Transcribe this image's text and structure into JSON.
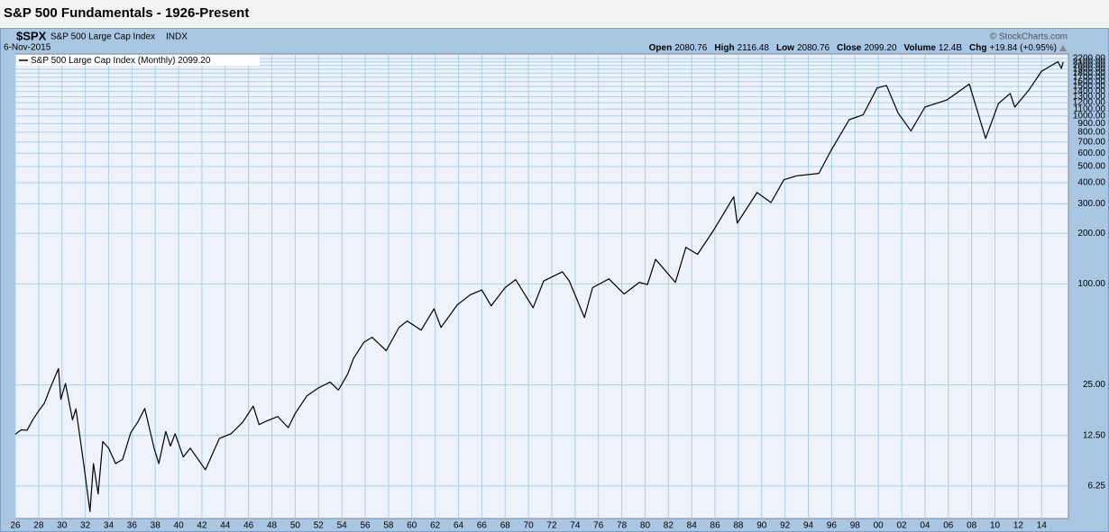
{
  "page_title": "S&P 500 Fundamentals - 1926-Present",
  "header": {
    "symbol": "$SPX",
    "name": "S&P 500 Large Cap Index",
    "exchange": "INDX",
    "date": "6-Nov-2015",
    "credit": "© StockCharts.com",
    "quote": [
      {
        "label": "Open",
        "value": "2080.76"
      },
      {
        "label": "High",
        "value": "2116.48"
      },
      {
        "label": "Low",
        "value": "2080.76"
      },
      {
        "label": "Close",
        "value": "2099.20"
      },
      {
        "label": "Volume",
        "value": "12.4B"
      },
      {
        "label": "Chg",
        "value": "+19.84 (+0.95%)"
      }
    ]
  },
  "chart_data": {
    "type": "line",
    "log_scale": true,
    "grid": true,
    "xlim": [
      1926,
      2016.3
    ],
    "ylim": [
      4.0,
      2340
    ],
    "xticks": [
      {
        "value": 1926,
        "label": "26"
      },
      {
        "value": 1928,
        "label": "28"
      },
      {
        "value": 1930,
        "label": "30"
      },
      {
        "value": 1932,
        "label": "32"
      },
      {
        "value": 1934,
        "label": "34"
      },
      {
        "value": 1936,
        "label": "36"
      },
      {
        "value": 1938,
        "label": "38"
      },
      {
        "value": 1940,
        "label": "40"
      },
      {
        "value": 1942,
        "label": "42"
      },
      {
        "value": 1944,
        "label": "44"
      },
      {
        "value": 1946,
        "label": "46"
      },
      {
        "value": 1948,
        "label": "48"
      },
      {
        "value": 1950,
        "label": "50"
      },
      {
        "value": 1952,
        "label": "52"
      },
      {
        "value": 1954,
        "label": "54"
      },
      {
        "value": 1956,
        "label": "56"
      },
      {
        "value": 1958,
        "label": "58"
      },
      {
        "value": 1960,
        "label": "60"
      },
      {
        "value": 1962,
        "label": "62"
      },
      {
        "value": 1964,
        "label": "64"
      },
      {
        "value": 1966,
        "label": "66"
      },
      {
        "value": 1968,
        "label": "68"
      },
      {
        "value": 1970,
        "label": "70"
      },
      {
        "value": 1972,
        "label": "72"
      },
      {
        "value": 1974,
        "label": "74"
      },
      {
        "value": 1976,
        "label": "76"
      },
      {
        "value": 1978,
        "label": "78"
      },
      {
        "value": 1980,
        "label": "80"
      },
      {
        "value": 1982,
        "label": "82"
      },
      {
        "value": 1984,
        "label": "84"
      },
      {
        "value": 1986,
        "label": "86"
      },
      {
        "value": 1988,
        "label": "88"
      },
      {
        "value": 1990,
        "label": "90"
      },
      {
        "value": 1992,
        "label": "92"
      },
      {
        "value": 1994,
        "label": "94"
      },
      {
        "value": 1996,
        "label": "96"
      },
      {
        "value": 1998,
        "label": "98"
      },
      {
        "value": 2000,
        "label": "00"
      },
      {
        "value": 2002,
        "label": "02"
      },
      {
        "value": 2004,
        "label": "04"
      },
      {
        "value": 2006,
        "label": "06"
      },
      {
        "value": 2008,
        "label": "08"
      },
      {
        "value": 2010,
        "label": "10"
      },
      {
        "value": 2012,
        "label": "12"
      },
      {
        "value": 2014,
        "label": "14"
      }
    ],
    "yticks": [
      6.25,
      {
        "value": 12.5,
        "label": "12.50"
      },
      {
        "value": 25,
        "label": "25.00"
      },
      {
        "value": 100,
        "label": "100.00"
      },
      {
        "value": 200,
        "label": "200.00"
      },
      {
        "value": 300,
        "label": "300.00"
      },
      {
        "value": 400,
        "label": "400.00"
      },
      {
        "value": 500,
        "label": "500.00"
      },
      {
        "value": 600,
        "label": "600.00"
      },
      {
        "value": 700,
        "label": "700.00"
      },
      {
        "value": 800,
        "label": "800.00"
      },
      {
        "value": 900,
        "label": "900.00"
      },
      {
        "value": 1000,
        "label": "1000.00"
      },
      {
        "value": 1100,
        "label": "1100.00"
      },
      {
        "value": 1200,
        "label": "1200.00"
      },
      {
        "value": 1300,
        "label": "1300.00"
      },
      {
        "value": 1400,
        "label": "1400.00"
      },
      {
        "value": 1500,
        "label": "1500.00"
      },
      {
        "value": 1600,
        "label": "1600.00"
      },
      {
        "value": 1700,
        "label": "1700.00"
      },
      {
        "value": 1800,
        "label": "1800.00"
      },
      {
        "value": 1900,
        "label": "1900.00"
      },
      {
        "value": 2000,
        "label": "2000.00"
      },
      {
        "value": 2100,
        "label": "2100.00"
      },
      {
        "value": 2200,
        "label": "2200.00"
      }
    ],
    "x": [
      1926.0,
      1926.5,
      1927.0,
      1927.5,
      1928.0,
      1928.5,
      1929.0,
      1929.7,
      1929.9,
      1930.3,
      1930.9,
      1931.2,
      1931.9,
      1932.4,
      1932.7,
      1933.1,
      1933.5,
      1934.0,
      1934.6,
      1935.2,
      1935.9,
      1936.5,
      1937.1,
      1937.9,
      1938.3,
      1938.9,
      1939.3,
      1939.7,
      1940.4,
      1941.0,
      1942.3,
      1943.5,
      1944.5,
      1945.5,
      1946.4,
      1946.9,
      1947.5,
      1948.5,
      1949.4,
      1950.0,
      1951.0,
      1952.0,
      1953.0,
      1953.7,
      1954.5,
      1955.0,
      1955.9,
      1956.6,
      1957.8,
      1958.9,
      1959.6,
      1960.8,
      1961.9,
      1962.5,
      1963.9,
      1965.0,
      1966.0,
      1966.8,
      1968.0,
      1968.9,
      1970.4,
      1971.3,
      1972.9,
      1973.5,
      1974.8,
      1975.5,
      1976.9,
      1978.2,
      1979.5,
      1980.2,
      1980.9,
      1982.6,
      1983.5,
      1984.5,
      1985.9,
      1987.6,
      1987.9,
      1989.6,
      1990.8,
      1991.9,
      1993.0,
      1994.9,
      1995.9,
      1997.5,
      1998.7,
      1999.9,
      2000.7,
      2001.7,
      2002.8,
      2004.0,
      2005.9,
      2007.8,
      2009.2,
      2010.3,
      2011.3,
      2011.7,
      2012.9,
      2014.0,
      2015.4,
      2015.7,
      2015.85
    ],
    "series": [
      {
        "name": "S&P 500 Large Cap Index (Monthly)",
        "legend_value": "2099.20",
        "color": "#000000",
        "values": [
          12.7,
          13.5,
          13.4,
          15.5,
          17.5,
          19.5,
          24,
          31.3,
          20.5,
          25.5,
          15.5,
          18,
          8.1,
          4.4,
          8.5,
          5.6,
          11.5,
          10.5,
          8.5,
          9,
          13,
          15,
          18.1,
          10.5,
          8.5,
          13.2,
          10.8,
          12.8,
          9.3,
          10.5,
          7.8,
          12,
          12.8,
          15,
          18.7,
          14.5,
          15.2,
          16.2,
          13.9,
          16.9,
          21.5,
          24,
          26,
          23.3,
          29,
          36,
          45,
          48,
          40,
          55,
          60,
          53,
          71,
          55,
          75,
          86,
          92,
          74,
          95,
          106,
          72,
          104,
          118,
          104,
          63,
          95,
          107,
          87,
          102,
          99,
          140,
          102,
          165,
          150,
          210,
          330,
          230,
          350,
          305,
          417,
          440,
          455,
          615,
          950,
          1017,
          1469,
          1520,
          1040,
          815,
          1130,
          1248,
          1549,
          735,
          1186,
          1363,
          1131,
          1426,
          1848,
          2107,
          1920,
          2099.2
        ]
      }
    ]
  }
}
